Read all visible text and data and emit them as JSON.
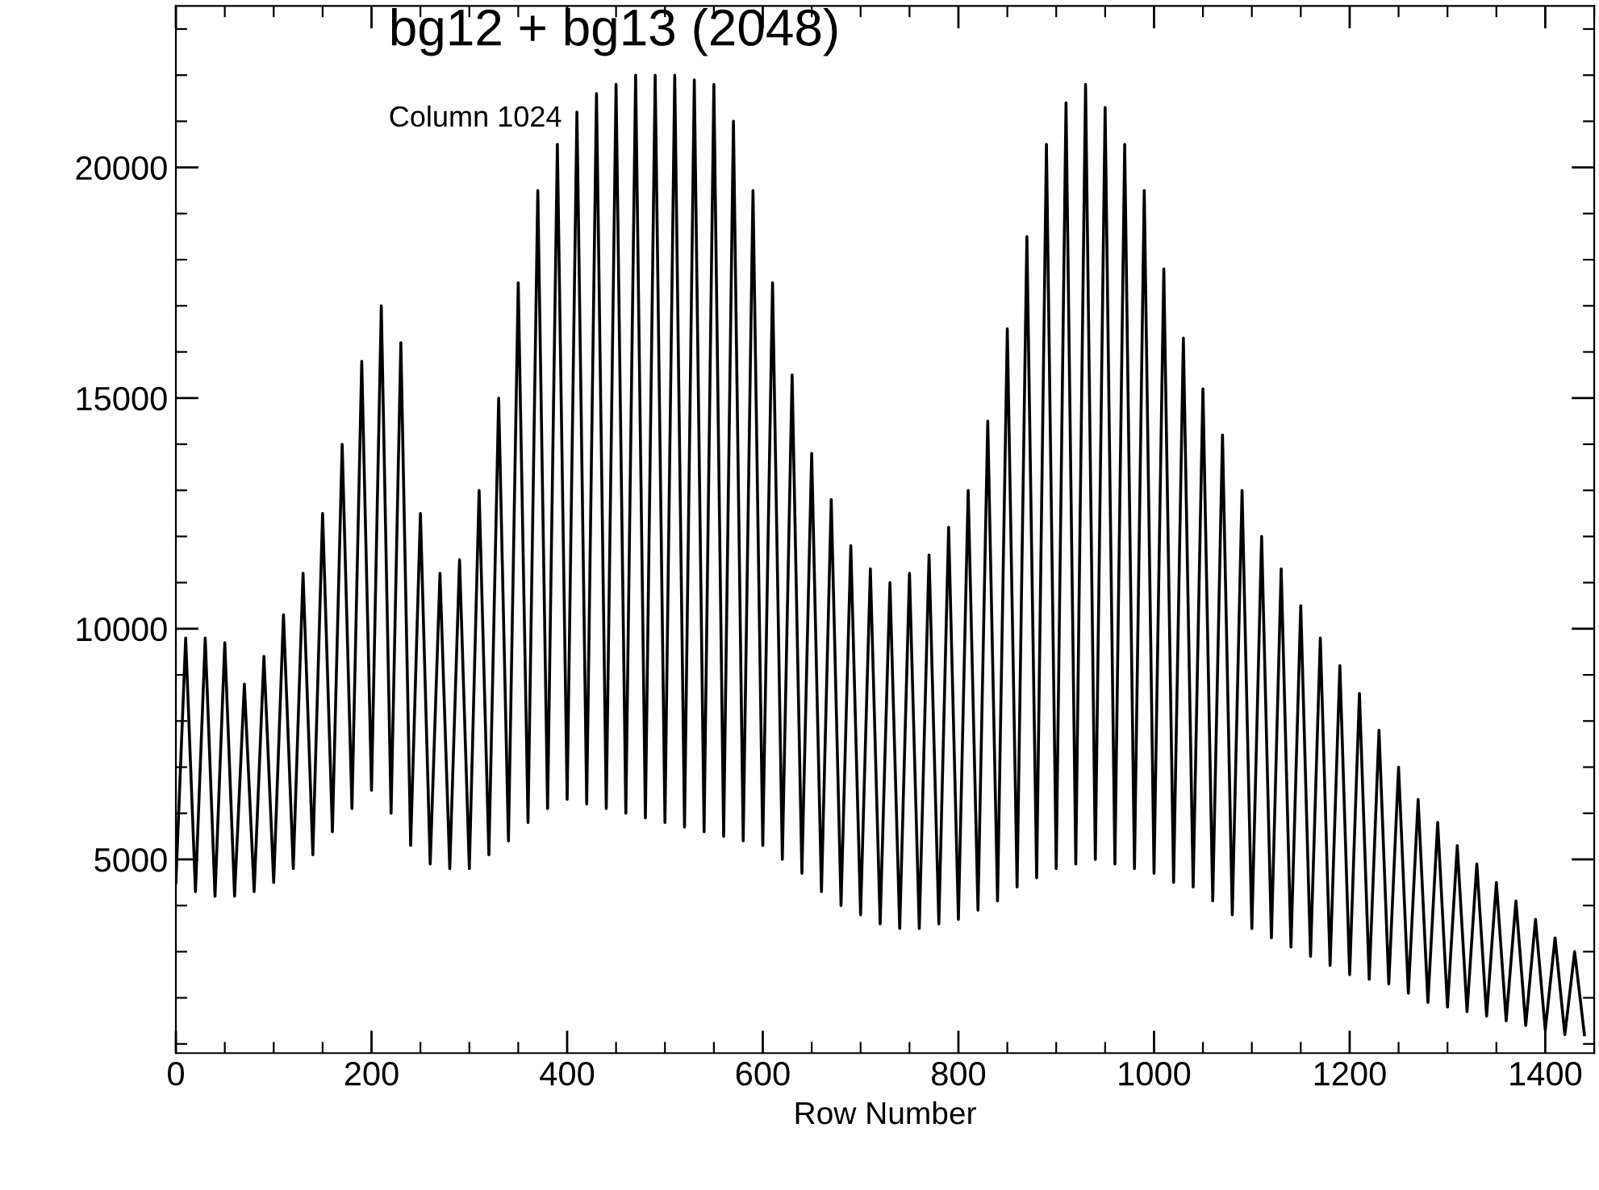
{
  "chart_data": {
    "type": "line",
    "title": "bg12 + bg13 (2048)",
    "xlabel": "Row Number",
    "annotations": [
      "Column 1024"
    ],
    "x": [
      0,
      10,
      20,
      30,
      40,
      50,
      60,
      70,
      80,
      90,
      100,
      110,
      120,
      130,
      140,
      150,
      160,
      170,
      180,
      190,
      200,
      210,
      220,
      230,
      240,
      250,
      260,
      270,
      280,
      290,
      300,
      310,
      320,
      330,
      340,
      350,
      360,
      370,
      380,
      390,
      400,
      410,
      420,
      430,
      440,
      450,
      460,
      470,
      480,
      490,
      500,
      510,
      520,
      530,
      540,
      550,
      560,
      570,
      580,
      590,
      600,
      610,
      620,
      630,
      640,
      650,
      660,
      670,
      680,
      690,
      700,
      710,
      720,
      730,
      740,
      750,
      760,
      770,
      780,
      790,
      800,
      810,
      820,
      830,
      840,
      850,
      860,
      870,
      880,
      890,
      900,
      910,
      920,
      930,
      940,
      950,
      960,
      970,
      980,
      990,
      1000,
      1010,
      1020,
      1030,
      1040,
      1050,
      1060,
      1070,
      1080,
      1090,
      1100,
      1110,
      1120,
      1130,
      1140,
      1150,
      1160,
      1170,
      1180,
      1190,
      1200,
      1210,
      1220,
      1230,
      1240,
      1250,
      1260,
      1270,
      1280,
      1290,
      1300,
      1310,
      1320,
      1330,
      1340,
      1350,
      1360,
      1370,
      1380,
      1390,
      1400,
      1410,
      1420,
      1430,
      1440
    ],
    "series": [
      {
        "color": "#000000",
        "values": [
          4500,
          9800,
          4300,
          9800,
          4200,
          9700,
          4200,
          8800,
          4300,
          9400,
          4500,
          10300,
          4800,
          11200,
          5100,
          12500,
          5600,
          14000,
          6100,
          15800,
          6500,
          17000,
          6000,
          16200,
          5300,
          12500,
          4900,
          11200,
          4800,
          11500,
          4800,
          13000,
          5100,
          15000,
          5400,
          17500,
          5800,
          19500,
          6100,
          20500,
          6300,
          21200,
          6200,
          21600,
          6100,
          21800,
          6000,
          22000,
          5900,
          22000,
          5800,
          22000,
          5700,
          21900,
          5600,
          21800,
          5500,
          21000,
          5400,
          19500,
          5300,
          17500,
          5000,
          15500,
          4700,
          13800,
          4300,
          12800,
          4000,
          11800,
          3800,
          11300,
          3600,
          11000,
          3500,
          11200,
          3500,
          11600,
          3600,
          12200,
          3700,
          13000,
          3900,
          14500,
          4100,
          16500,
          4400,
          18500,
          4600,
          20500,
          4800,
          21400,
          4900,
          21800,
          5000,
          21300,
          4900,
          20500,
          4800,
          19500,
          4700,
          17800,
          4500,
          16300,
          4400,
          15200,
          4100,
          14200,
          3800,
          13000,
          3500,
          12000,
          3300,
          11300,
          3100,
          10500,
          2900,
          9800,
          2700,
          9200,
          2500,
          8600,
          2400,
          7800,
          2300,
          7000,
          2100,
          6300,
          1900,
          5800,
          1800,
          5300,
          1700,
          4900,
          1600,
          4500,
          1500,
          4100,
          1400,
          3700,
          1300,
          3300,
          1200,
          3000,
          1200
        ]
      }
    ],
    "xlim": [
      0,
      1450
    ],
    "ylim": [
      800,
      23500
    ],
    "xticks": [
      0,
      200,
      400,
      600,
      800,
      1000,
      1200,
      1400
    ],
    "yticks": [
      5000,
      10000,
      15000,
      20000
    ],
    "grid": false,
    "legend": false,
    "marker": "none",
    "line_style": "solid"
  }
}
